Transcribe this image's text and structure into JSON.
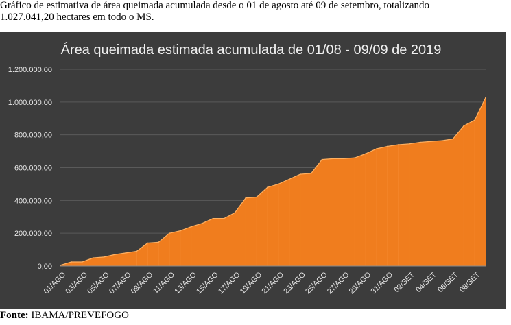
{
  "caption": {
    "line1": "Gráfico de estimativa de área queimada acumulada desde o 01 de agosto até 09 de setembro, totalizando",
    "line2": "1.027.041,20 hectares em todo o MS."
  },
  "source": {
    "label": "Fonte:",
    "text": " IBAMA/PREVEFOGO"
  },
  "colors": {
    "background": "#3c3c3c",
    "area_fill": "#f07d1e",
    "area_line": "#ffb060",
    "gridline": "#5a5a5a"
  },
  "chart_data": {
    "type": "area",
    "title": "Área queimada estimada acumulada de 01/08 - 09/09 de 2019",
    "xlabel": "",
    "ylabel": "",
    "ylim": [
      0,
      1200000
    ],
    "y_ticks": [
      "0,00",
      "200.000,00",
      "400.000,00",
      "600.000,00",
      "800.000,00",
      "1.000.000,00",
      "1.200.000,00"
    ],
    "grid": true,
    "categories": [
      "01/AGO",
      "02/AGO",
      "03/AGO",
      "04/AGO",
      "05/AGO",
      "06/AGO",
      "07/AGO",
      "08/AGO",
      "09/AGO",
      "10/AGO",
      "11/AGO",
      "12/AGO",
      "13/AGO",
      "14/AGO",
      "15/AGO",
      "16/AGO",
      "17/AGO",
      "18/AGO",
      "19/AGO",
      "20/AGO",
      "21/AGO",
      "22/AGO",
      "23/AGO",
      "24/AGO",
      "25/AGO",
      "26/AGO",
      "27/AGO",
      "28/AGO",
      "29/AGO",
      "30/AGO",
      "31/AGO",
      "01/SET",
      "02/SET",
      "03/SET",
      "04/SET",
      "05/SET",
      "06/SET",
      "07/SET",
      "08/SET",
      "09/SET"
    ],
    "x_tick_labels": [
      "01/AGO",
      "03/AGO",
      "05/AGO",
      "07/AGO",
      "09/AGO",
      "11/AGO",
      "13/AGO",
      "15/AGO",
      "17/AGO",
      "19/AGO",
      "21/AGO",
      "23/AGO",
      "25/AGO",
      "27/AGO",
      "29/AGO",
      "31/AGO",
      "02/SET",
      "04/SET",
      "06/SET",
      "08/SET"
    ],
    "values": [
      5000,
      25000,
      25000,
      50000,
      55000,
      70000,
      80000,
      90000,
      140000,
      145000,
      200000,
      215000,
      240000,
      260000,
      290000,
      290000,
      325000,
      415000,
      420000,
      480000,
      500000,
      530000,
      560000,
      565000,
      650000,
      655000,
      655000,
      660000,
      685000,
      715000,
      730000,
      740000,
      745000,
      755000,
      760000,
      765000,
      775000,
      855000,
      890000,
      1027041.2
    ]
  }
}
